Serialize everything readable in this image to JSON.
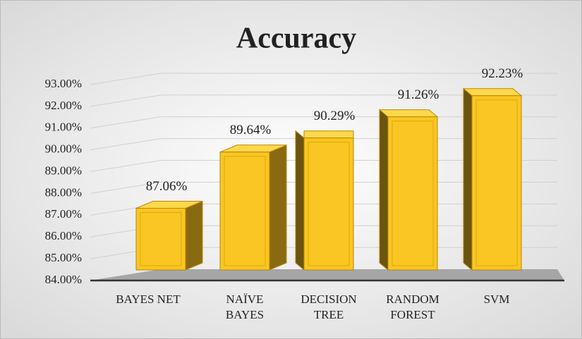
{
  "chart_data": {
    "type": "bar3d",
    "title": "Accuracy",
    "categories": [
      "BAYES NET",
      "NAÏVE BAYES",
      "DECISION TREE",
      "RANDOM FOREST",
      "SVM"
    ],
    "values": [
      87.06,
      89.64,
      90.29,
      91.26,
      92.23
    ],
    "value_labels": [
      "87.06%",
      "89.64%",
      "90.29%",
      "91.26%",
      "92.23%"
    ],
    "color": "#f9c623",
    "ylim": [
      84,
      93
    ],
    "yticks": [
      {
        "value": 84,
        "label": "84.00%"
      },
      {
        "value": 85,
        "label": "85.00%"
      },
      {
        "value": 86,
        "label": "86.00%"
      },
      {
        "value": 87,
        "label": "87.00%"
      },
      {
        "value": 88,
        "label": "88.00%"
      },
      {
        "value": 89,
        "label": "89.00%"
      },
      {
        "value": 90,
        "label": "90.00%"
      },
      {
        "value": 91,
        "label": "91.00%"
      },
      {
        "value": 92,
        "label": "92.00%"
      },
      {
        "value": 93,
        "label": "93.00%"
      }
    ],
    "grid": true
  }
}
